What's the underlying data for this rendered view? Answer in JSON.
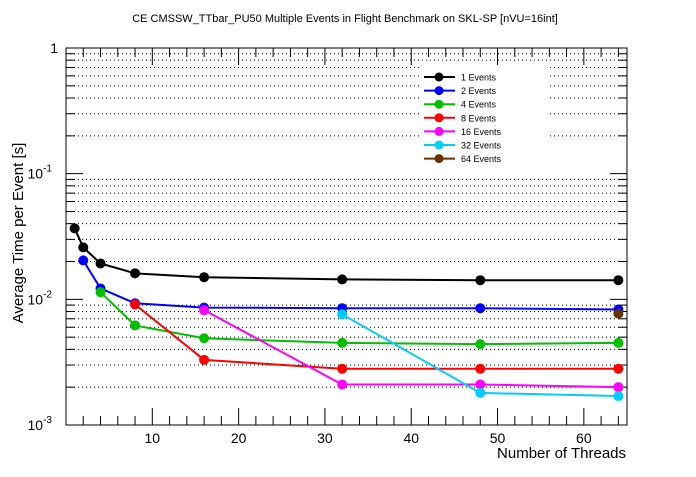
{
  "chart_data": {
    "type": "line",
    "title": "CE CMSSW_TTbar_PU50 Multiple Events in Flight Benchmark on SKL-SP [nVU=16int]",
    "xlabel": "Number of Threads",
    "ylabel": "Average Time per Event [s]",
    "xlim": [
      0,
      65
    ],
    "ylim": [
      0.001,
      1
    ],
    "yscale": "log",
    "x_ticks": [
      10,
      20,
      30,
      40,
      50,
      60
    ],
    "y_ticks": [
      {
        "value": 0.001,
        "base": "10",
        "exp": "-3"
      },
      {
        "value": 0.01,
        "base": "10",
        "exp": "-2"
      },
      {
        "value": 0.1,
        "base": "10",
        "exp": "-1"
      },
      {
        "value": 1,
        "base": "1",
        "exp": ""
      }
    ],
    "grid": "horizontal dotted",
    "legend_placement": "top-right",
    "series": [
      {
        "name": "1 Events",
        "color": "#000000",
        "x": [
          1,
          2,
          4,
          8,
          16,
          32,
          48,
          64
        ],
        "values": [
          0.0367,
          0.0259,
          0.0193,
          0.0161,
          0.015,
          0.0144,
          0.0142,
          0.0142
        ]
      },
      {
        "name": "2 Events",
        "color": "#0000ff",
        "x": [
          2,
          4,
          8,
          16,
          32,
          48,
          64
        ],
        "values": [
          0.0204,
          0.0122,
          0.0093,
          0.0086,
          0.0085,
          0.0085,
          0.0083
        ]
      },
      {
        "name": "4 Events",
        "color": "#00c000",
        "x": [
          4,
          8,
          16,
          32,
          48,
          64
        ],
        "values": [
          0.0114,
          0.0062,
          0.0049,
          0.0045,
          0.0044,
          0.0045
        ]
      },
      {
        "name": "8 Events",
        "color": "#ff0000",
        "x": [
          8,
          16,
          32,
          48,
          64
        ],
        "values": [
          0.0091,
          0.0033,
          0.0028,
          0.0028,
          0.0028
        ]
      },
      {
        "name": "16 Events",
        "color": "#ff00ff",
        "x": [
          16,
          32,
          48,
          64
        ],
        "values": [
          0.0082,
          0.0021,
          0.0021,
          0.002
        ]
      },
      {
        "name": "32 Events",
        "color": "#00ccff",
        "x": [
          32,
          48,
          64
        ],
        "values": [
          0.0076,
          0.0018,
          0.0017
        ]
      },
      {
        "name": "64 Events",
        "color": "#663300",
        "x": [
          64
        ],
        "values": [
          0.0077
        ]
      }
    ]
  }
}
